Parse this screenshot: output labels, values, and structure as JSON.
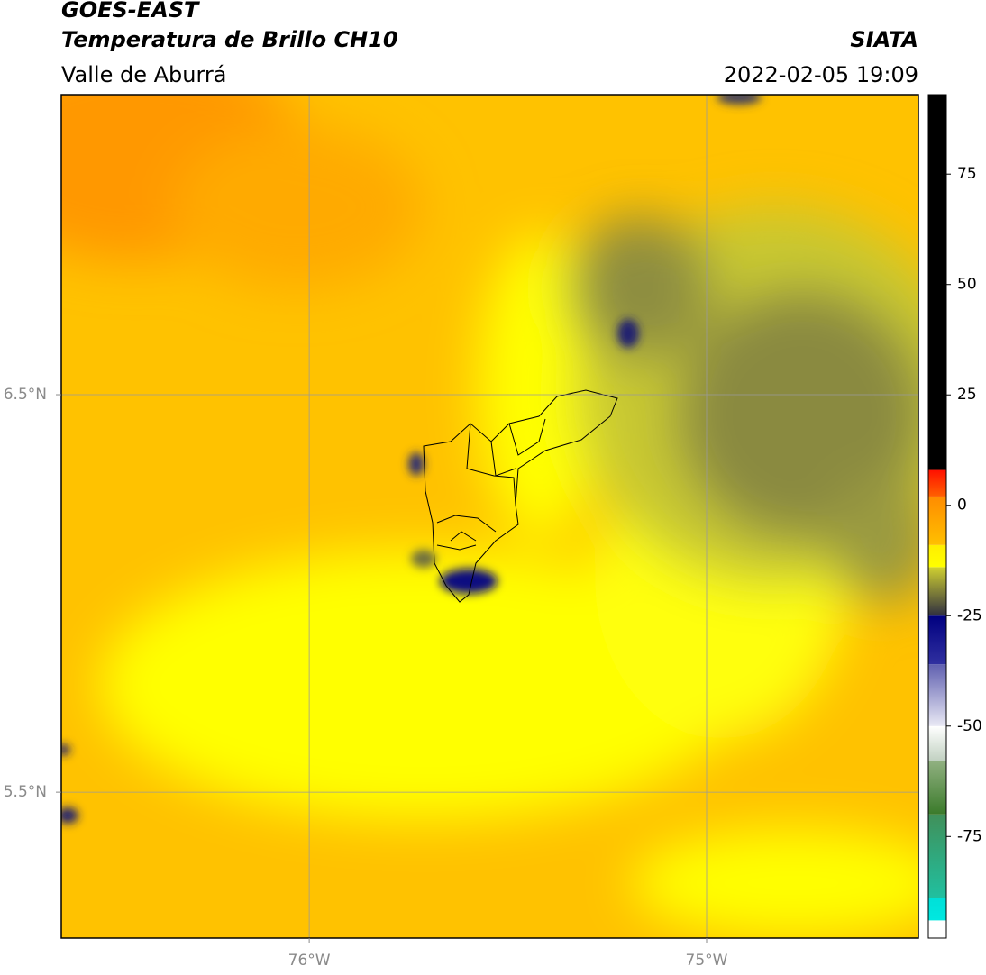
{
  "chart_data": {
    "type": "map",
    "title": "GOES-EAST",
    "subtitle": "Temperatura de Brillo CH10",
    "institution": "SIATA",
    "region": "Valle de Aburrá",
    "datetime": "2022-02-05 19:09",
    "xlim": [
      -76.624,
      -74.467
    ],
    "ylim": [
      5.133,
      7.255
    ],
    "xticks": [
      {
        "value": -76,
        "label": "76°W"
      },
      {
        "value": -75,
        "label": "75°W"
      }
    ],
    "yticks": [
      {
        "value": 6.5,
        "label": "6.5°N"
      },
      {
        "value": 5.5,
        "label": "5.5°N"
      }
    ],
    "grid": true,
    "colorbar": {
      "ylim": [
        -98,
        93
      ],
      "yticks": [
        75,
        50,
        25,
        0,
        -25,
        -50,
        -75
      ],
      "bands": [
        {
          "from": -98,
          "to": -94,
          "colors": [
            "#ffffff",
            "#ffffff"
          ]
        },
        {
          "from": -94,
          "to": -89,
          "colors": [
            "#00e8e0",
            "#00e0d8"
          ]
        },
        {
          "from": -89,
          "to": -70,
          "colors": [
            "#20c0a0",
            "#40905a"
          ]
        },
        {
          "from": -70,
          "to": -58,
          "colors": [
            "#3a7a2a",
            "#90b080"
          ]
        },
        {
          "from": -58,
          "to": -50,
          "colors": [
            "#c0d0c0",
            "#ffffff"
          ]
        },
        {
          "from": -50,
          "to": -36,
          "colors": [
            "#e8e8f4",
            "#6060b0"
          ]
        },
        {
          "from": -36,
          "to": -25,
          "colors": [
            "#3030a0",
            "#000080"
          ]
        },
        {
          "from": -25,
          "to": -14,
          "colors": [
            "#303040",
            "#d0d030"
          ]
        },
        {
          "from": -14,
          "to": -9,
          "colors": [
            "#ffff00",
            "#ffee00"
          ]
        },
        {
          "from": -9,
          "to": 2,
          "colors": [
            "#ffc000",
            "#ff8c00"
          ]
        },
        {
          "from": 2,
          "to": 8,
          "colors": [
            "#ff6000",
            "#ff1000"
          ]
        },
        {
          "from": 8,
          "to": 93,
          "colors": [
            "#000000",
            "#000000"
          ]
        }
      ]
    }
  }
}
